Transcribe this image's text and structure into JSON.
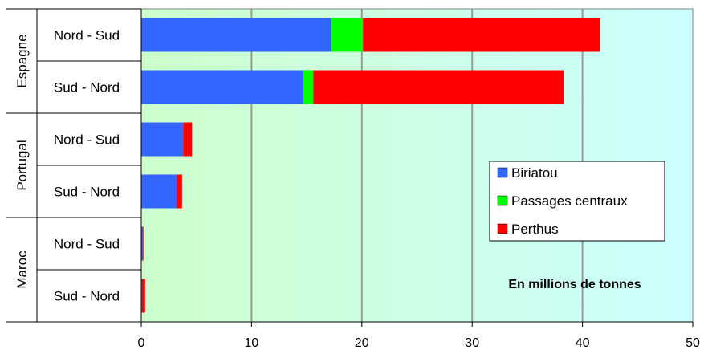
{
  "chart_data": {
    "type": "bar",
    "orientation": "horizontal",
    "stacked": true,
    "groups": [
      {
        "label": "Espagne",
        "categories": [
          "Nord - Sud",
          "Sud - Nord"
        ]
      },
      {
        "label": "Portugal",
        "categories": [
          "Nord - Sud",
          "Sud - Nord"
        ]
      },
      {
        "label": "Maroc",
        "categories": [
          "Nord - Sud",
          "Sud - Nord"
        ]
      }
    ],
    "categories": [
      "Espagne Nord - Sud",
      "Espagne Sud - Nord",
      "Portugal Nord - Sud",
      "Portugal Sud - Nord",
      "Maroc Nord - Sud",
      "Maroc Sud - Nord"
    ],
    "series": [
      {
        "name": "Biriatou",
        "color": "#3366FF",
        "values": [
          17.2,
          14.7,
          3.8,
          3.2,
          0.1,
          0.05
        ]
      },
      {
        "name": "Passages centraux",
        "color": "#00FF00",
        "values": [
          2.9,
          0.9,
          0.0,
          0.0,
          0.0,
          0.0
        ]
      },
      {
        "name": "Perthus",
        "color": "#FF0000",
        "values": [
          21.5,
          22.7,
          0.8,
          0.5,
          0.1,
          0.3
        ]
      }
    ],
    "xlim": [
      0,
      50
    ],
    "xticks": [
      0,
      10,
      20,
      30,
      40,
      50
    ],
    "grid": true,
    "legend_position": "right",
    "annotation": "En millions de tonnes"
  }
}
